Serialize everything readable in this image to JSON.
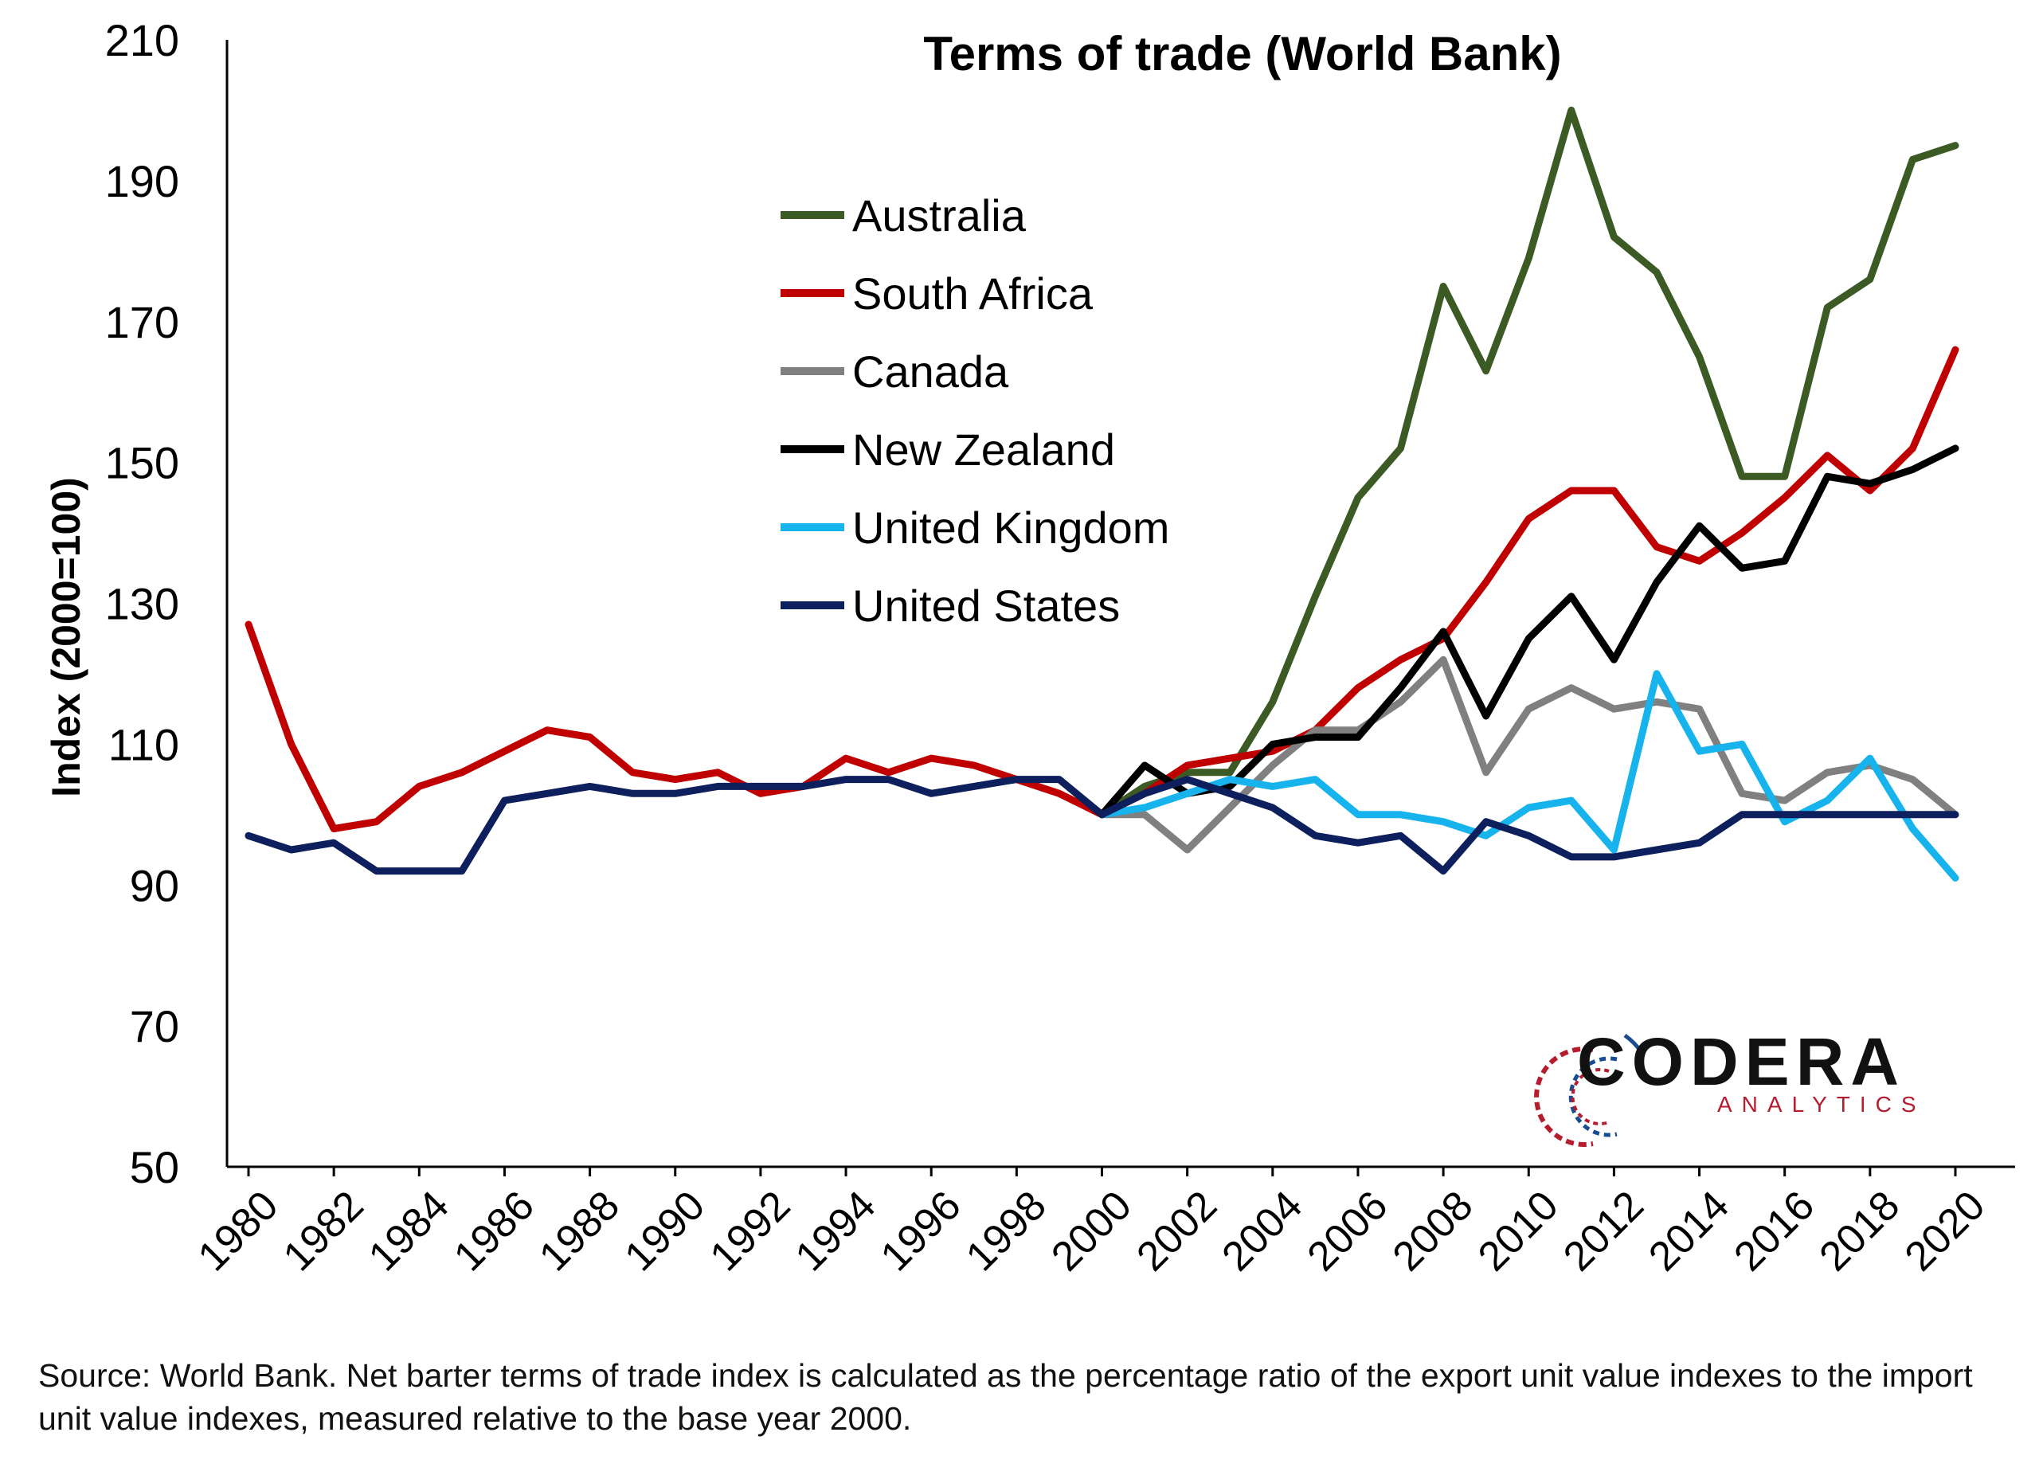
{
  "chart_data": {
    "type": "line",
    "title": "Terms of trade (World Bank)",
    "xlabel": "",
    "ylabel": "Index (2000=100)",
    "ylim": [
      50,
      210
    ],
    "yticks": [
      50,
      70,
      90,
      110,
      130,
      150,
      170,
      190,
      210
    ],
    "xlim": [
      1980,
      2020
    ],
    "xticks": [
      1980,
      1982,
      1984,
      1986,
      1988,
      1990,
      1992,
      1994,
      1996,
      1998,
      2000,
      2002,
      2004,
      2006,
      2008,
      2010,
      2012,
      2014,
      2016,
      2018,
      2020
    ],
    "grid": false,
    "legend_position": "top-center",
    "series": [
      {
        "name": "Australia",
        "color": "#3b5a24",
        "x": [
          2000,
          2001,
          2002,
          2003,
          2004,
          2005,
          2006,
          2007,
          2008,
          2009,
          2010,
          2011,
          2012,
          2013,
          2014,
          2015,
          2016,
          2017,
          2018,
          2019,
          2020
        ],
        "values": [
          100,
          104,
          106,
          106,
          116,
          131,
          145,
          152,
          175,
          163,
          179,
          200,
          182,
          177,
          165,
          148,
          148,
          172,
          176,
          193,
          195
        ]
      },
      {
        "name": "South Africa",
        "color": "#c00000",
        "x": [
          1980,
          1981,
          1982,
          1983,
          1984,
          1985,
          1986,
          1987,
          1988,
          1989,
          1990,
          1991,
          1992,
          1993,
          1994,
          1995,
          1996,
          1997,
          1998,
          1999,
          2000,
          2001,
          2002,
          2003,
          2004,
          2005,
          2006,
          2007,
          2008,
          2009,
          2010,
          2011,
          2012,
          2013,
          2014,
          2015,
          2016,
          2017,
          2018,
          2019,
          2020
        ],
        "values": [
          127,
          110,
          98,
          99,
          104,
          106,
          109,
          112,
          111,
          106,
          105,
          106,
          103,
          104,
          108,
          106,
          108,
          107,
          105,
          103,
          100,
          103,
          107,
          108,
          109,
          112,
          118,
          122,
          125,
          133,
          142,
          146,
          146,
          138,
          136,
          140,
          145,
          151,
          146,
          152,
          166
        ]
      },
      {
        "name": "Canada",
        "color": "#808080",
        "x": [
          2000,
          2001,
          2002,
          2003,
          2004,
          2005,
          2006,
          2007,
          2008,
          2009,
          2010,
          2011,
          2012,
          2013,
          2014,
          2015,
          2016,
          2017,
          2018,
          2019,
          2020
        ],
        "values": [
          100,
          100,
          95,
          101,
          107,
          112,
          112,
          116,
          122,
          106,
          115,
          118,
          115,
          116,
          115,
          103,
          102,
          106,
          107,
          105,
          100
        ]
      },
      {
        "name": "New Zealand",
        "color": "#000000",
        "x": [
          2000,
          2001,
          2002,
          2003,
          2004,
          2005,
          2006,
          2007,
          2008,
          2009,
          2010,
          2011,
          2012,
          2013,
          2014,
          2015,
          2016,
          2017,
          2018,
          2019,
          2020
        ],
        "values": [
          100,
          107,
          103,
          104,
          110,
          111,
          111,
          118,
          126,
          114,
          125,
          131,
          122,
          133,
          141,
          135,
          136,
          148,
          147,
          149,
          152
        ]
      },
      {
        "name": "United Kingdom",
        "color": "#17b3ec",
        "x": [
          2000,
          2001,
          2002,
          2003,
          2004,
          2005,
          2006,
          2007,
          2008,
          2009,
          2010,
          2011,
          2012,
          2013,
          2014,
          2015,
          2016,
          2017,
          2018,
          2019,
          2020
        ],
        "values": [
          100,
          101,
          103,
          105,
          104,
          105,
          100,
          100,
          99,
          97,
          101,
          102,
          95,
          120,
          109,
          110,
          99,
          102,
          108,
          98,
          91
        ]
      },
      {
        "name": "United States",
        "color": "#0d1f5c",
        "x": [
          1980,
          1981,
          1982,
          1983,
          1984,
          1985,
          1986,
          1987,
          1988,
          1989,
          1990,
          1991,
          1992,
          1993,
          1994,
          1995,
          1996,
          1997,
          1998,
          1999,
          2000,
          2001,
          2002,
          2003,
          2004,
          2005,
          2006,
          2007,
          2008,
          2009,
          2010,
          2011,
          2012,
          2013,
          2014,
          2015,
          2016,
          2017,
          2018,
          2019,
          2020
        ],
        "values": [
          97,
          95,
          96,
          92,
          92,
          92,
          102,
          103,
          104,
          103,
          103,
          104,
          104,
          104,
          105,
          105,
          103,
          104,
          105,
          105,
          100,
          103,
          105,
          103,
          101,
          97,
          96,
          97,
          92,
          99,
          97,
          94,
          94,
          95,
          96,
          100,
          100,
          100,
          100,
          100,
          100
        ]
      }
    ]
  },
  "logo": {
    "name": "CODERA",
    "sub": "ANALYTICS"
  },
  "source_note": "Source: World Bank. Net barter terms of trade index is calculated as the percentage ratio of the export unit value indexes to the import unit value indexes, measured relative to the base year 2000."
}
